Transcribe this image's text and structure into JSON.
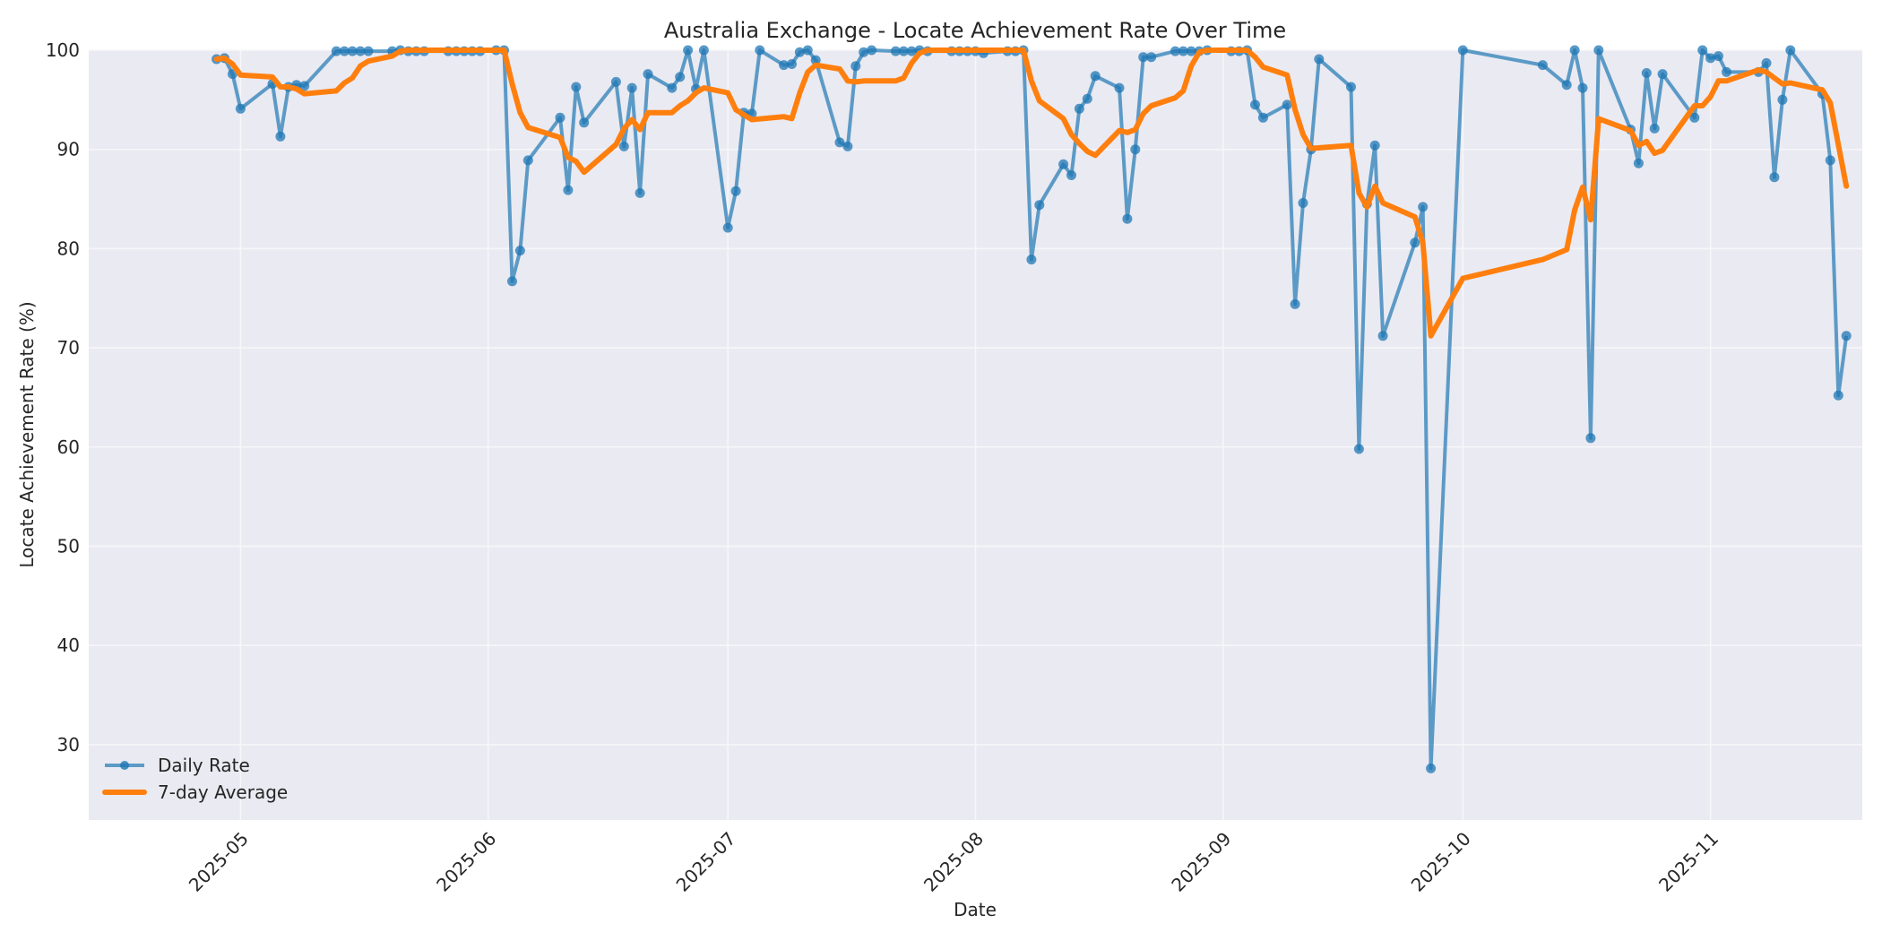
{
  "chart_data": {
    "type": "line",
    "title": "Australia Exchange - Locate Achievement Rate Over Time",
    "xlabel": "Date",
    "ylabel": "Locate Achievement Rate (%)",
    "ylim": [
      22.4,
      100
    ],
    "yticks": [
      30,
      40,
      50,
      60,
      70,
      80,
      90,
      100
    ],
    "xticks": [
      "2025-05",
      "2025-06",
      "2025-07",
      "2025-08",
      "2025-09",
      "2025-10",
      "2025-11"
    ],
    "xlim": [
      "2025-04-12",
      "2025-11-20"
    ],
    "grid": true,
    "legend_position": "lower left",
    "colors": {
      "daily": "#1f77b4",
      "average": "#ff7f0e",
      "plot_bg": "#eaeaf2",
      "grid": "#f5f5f8"
    },
    "series": [
      {
        "name": "Daily Rate",
        "style": "line-with-markers",
        "points": [
          [
            "2025-04-28",
            99.1
          ],
          [
            "2025-04-29",
            99.2
          ],
          [
            "2025-04-30",
            97.6
          ],
          [
            "2025-05-01",
            94.1
          ],
          [
            "2025-05-05",
            96.6
          ],
          [
            "2025-05-06",
            91.3
          ],
          [
            "2025-05-07",
            96.3
          ],
          [
            "2025-05-08",
            96.5
          ],
          [
            "2025-05-09",
            96.4
          ],
          [
            "2025-05-13",
            99.9
          ],
          [
            "2025-05-14",
            99.9
          ],
          [
            "2025-05-15",
            99.9
          ],
          [
            "2025-05-16",
            99.9
          ],
          [
            "2025-05-17",
            99.9
          ],
          [
            "2025-05-20",
            99.9
          ],
          [
            "2025-05-21",
            100
          ],
          [
            "2025-05-22",
            99.9
          ],
          [
            "2025-05-23",
            99.9
          ],
          [
            "2025-05-24",
            99.9
          ],
          [
            "2025-05-27",
            99.9
          ],
          [
            "2025-05-28",
            99.9
          ],
          [
            "2025-05-29",
            99.9
          ],
          [
            "2025-05-30",
            99.9
          ],
          [
            "2025-05-31",
            99.9
          ],
          [
            "2025-06-02",
            100
          ],
          [
            "2025-06-03",
            100
          ],
          [
            "2025-06-04",
            76.7
          ],
          [
            "2025-06-05",
            79.8
          ],
          [
            "2025-06-06",
            88.9
          ],
          [
            "2025-06-10",
            93.2
          ],
          [
            "2025-06-11",
            85.9
          ],
          [
            "2025-06-12",
            96.3
          ],
          [
            "2025-06-13",
            92.7
          ],
          [
            "2025-06-17",
            96.8
          ],
          [
            "2025-06-18",
            90.3
          ],
          [
            "2025-06-19",
            96.2
          ],
          [
            "2025-06-20",
            85.6
          ],
          [
            "2025-06-21",
            97.6
          ],
          [
            "2025-06-24",
            96.2
          ],
          [
            "2025-06-25",
            97.3
          ],
          [
            "2025-06-26",
            100
          ],
          [
            "2025-06-27",
            96.1
          ],
          [
            "2025-06-28",
            100
          ],
          [
            "2025-07-01",
            82.1
          ],
          [
            "2025-07-02",
            85.8
          ],
          [
            "2025-07-03",
            93.7
          ],
          [
            "2025-07-04",
            93.6
          ],
          [
            "2025-07-05",
            100
          ],
          [
            "2025-07-08",
            98.5
          ],
          [
            "2025-07-09",
            98.6
          ],
          [
            "2025-07-10",
            99.8
          ],
          [
            "2025-07-11",
            100
          ],
          [
            "2025-07-12",
            99.0
          ],
          [
            "2025-07-15",
            90.7
          ],
          [
            "2025-07-16",
            90.3
          ],
          [
            "2025-07-17",
            98.4
          ],
          [
            "2025-07-18",
            99.8
          ],
          [
            "2025-07-19",
            100
          ],
          [
            "2025-07-22",
            99.9
          ],
          [
            "2025-07-23",
            99.9
          ],
          [
            "2025-07-24",
            99.9
          ],
          [
            "2025-07-25",
            100
          ],
          [
            "2025-07-26",
            99.9
          ],
          [
            "2025-07-29",
            99.9
          ],
          [
            "2025-07-30",
            99.9
          ],
          [
            "2025-07-31",
            99.9
          ],
          [
            "2025-08-01",
            99.9
          ],
          [
            "2025-08-02",
            99.7
          ],
          [
            "2025-08-05",
            99.9
          ],
          [
            "2025-08-06",
            99.9
          ],
          [
            "2025-08-07",
            100
          ],
          [
            "2025-08-08",
            78.9
          ],
          [
            "2025-08-09",
            84.4
          ],
          [
            "2025-08-12",
            88.5
          ],
          [
            "2025-08-13",
            87.4
          ],
          [
            "2025-08-14",
            94.1
          ],
          [
            "2025-08-15",
            95.1
          ],
          [
            "2025-08-16",
            97.4
          ],
          [
            "2025-08-19",
            96.2
          ],
          [
            "2025-08-20",
            83.0
          ],
          [
            "2025-08-21",
            90.0
          ],
          [
            "2025-08-22",
            99.3
          ],
          [
            "2025-08-23",
            99.3
          ],
          [
            "2025-08-26",
            99.9
          ],
          [
            "2025-08-27",
            99.9
          ],
          [
            "2025-08-28",
            99.9
          ],
          [
            "2025-08-29",
            99.9
          ],
          [
            "2025-08-30",
            100
          ],
          [
            "2025-09-02",
            99.9
          ],
          [
            "2025-09-03",
            99.9
          ],
          [
            "2025-09-04",
            100
          ],
          [
            "2025-09-05",
            94.5
          ],
          [
            "2025-09-06",
            93.2
          ],
          [
            "2025-09-09",
            94.5
          ],
          [
            "2025-09-10",
            74.4
          ],
          [
            "2025-09-11",
            84.6
          ],
          [
            "2025-09-12",
            90.0
          ],
          [
            "2025-09-13",
            99.1
          ],
          [
            "2025-09-17",
            96.3
          ],
          [
            "2025-09-18",
            59.8
          ],
          [
            "2025-09-19",
            84.5
          ],
          [
            "2025-09-20",
            90.4
          ],
          [
            "2025-09-21",
            71.2
          ],
          [
            "2025-09-25",
            80.6
          ],
          [
            "2025-09-26",
            84.2
          ],
          [
            "2025-09-27",
            27.6
          ],
          [
            "2025-10-01",
            100
          ],
          [
            "2025-10-11",
            98.5
          ],
          [
            "2025-10-14",
            96.5
          ],
          [
            "2025-10-15",
            100
          ],
          [
            "2025-10-16",
            96.2
          ],
          [
            "2025-10-17",
            60.9
          ],
          [
            "2025-10-18",
            100
          ],
          [
            "2025-10-22",
            92.0
          ],
          [
            "2025-10-23",
            88.6
          ],
          [
            "2025-10-24",
            97.7
          ],
          [
            "2025-10-25",
            92.1
          ],
          [
            "2025-10-26",
            97.6
          ],
          [
            "2025-10-30",
            93.2
          ],
          [
            "2025-10-31",
            100
          ],
          [
            "2025-11-01",
            99.2
          ],
          [
            "2025-11-02",
            99.4
          ],
          [
            "2025-11-03",
            97.8
          ],
          [
            "2025-11-07",
            97.8
          ],
          [
            "2025-11-08",
            98.7
          ],
          [
            "2025-11-09",
            87.2
          ],
          [
            "2025-11-10",
            95.0
          ],
          [
            "2025-11-11",
            100
          ],
          [
            "2025-11-15",
            95.6
          ],
          [
            "2025-11-16",
            88.9
          ],
          [
            "2025-11-17",
            65.2
          ],
          [
            "2025-11-18",
            71.2
          ]
        ]
      },
      {
        "name": "7-day Average",
        "style": "thick-line",
        "points": [
          [
            "2025-04-28",
            99.1
          ],
          [
            "2025-04-29",
            99.2
          ],
          [
            "2025-04-30",
            98.6
          ],
          [
            "2025-05-01",
            97.5
          ],
          [
            "2025-05-05",
            97.3
          ],
          [
            "2025-05-06",
            96.3
          ],
          [
            "2025-05-07",
            96.3
          ],
          [
            "2025-05-08",
            96.1
          ],
          [
            "2025-05-09",
            95.6
          ],
          [
            "2025-05-13",
            95.9
          ],
          [
            "2025-05-14",
            96.7
          ],
          [
            "2025-05-15",
            97.2
          ],
          [
            "2025-05-16",
            98.4
          ],
          [
            "2025-05-17",
            98.9
          ],
          [
            "2025-05-20",
            99.4
          ],
          [
            "2025-05-21",
            99.9
          ],
          [
            "2025-05-22",
            100
          ],
          [
            "2025-06-03",
            100
          ],
          [
            "2025-06-04",
            96.6
          ],
          [
            "2025-06-05",
            93.7
          ],
          [
            "2025-06-06",
            92.2
          ],
          [
            "2025-06-10",
            91.2
          ],
          [
            "2025-06-11",
            89.2
          ],
          [
            "2025-06-12",
            88.8
          ],
          [
            "2025-06-13",
            87.7
          ],
          [
            "2025-06-17",
            90.5
          ],
          [
            "2025-06-18",
            92.1
          ],
          [
            "2025-06-19",
            93.0
          ],
          [
            "2025-06-20",
            92.0
          ],
          [
            "2025-06-21",
            93.7
          ],
          [
            "2025-06-24",
            93.7
          ],
          [
            "2025-06-25",
            94.4
          ],
          [
            "2025-06-26",
            94.9
          ],
          [
            "2025-06-27",
            95.7
          ],
          [
            "2025-06-28",
            96.2
          ],
          [
            "2025-07-01",
            95.7
          ],
          [
            "2025-07-02",
            94.0
          ],
          [
            "2025-07-03",
            93.5
          ],
          [
            "2025-07-04",
            93.0
          ],
          [
            "2025-07-08",
            93.3
          ],
          [
            "2025-07-09",
            93.1
          ],
          [
            "2025-07-10",
            95.7
          ],
          [
            "2025-07-11",
            97.8
          ],
          [
            "2025-07-12",
            98.5
          ],
          [
            "2025-07-15",
            98.1
          ],
          [
            "2025-07-16",
            96.9
          ],
          [
            "2025-07-17",
            96.8
          ],
          [
            "2025-07-18",
            96.9
          ],
          [
            "2025-07-22",
            96.9
          ],
          [
            "2025-07-23",
            97.2
          ],
          [
            "2025-07-24",
            98.7
          ],
          [
            "2025-07-25",
            99.7
          ],
          [
            "2025-07-26",
            100
          ],
          [
            "2025-08-07",
            100
          ],
          [
            "2025-08-08",
            96.9
          ],
          [
            "2025-08-09",
            94.9
          ],
          [
            "2025-08-12",
            93.1
          ],
          [
            "2025-08-13",
            91.5
          ],
          [
            "2025-08-14",
            90.6
          ],
          [
            "2025-08-15",
            89.8
          ],
          [
            "2025-08-16",
            89.4
          ],
          [
            "2025-08-19",
            91.9
          ],
          [
            "2025-08-20",
            91.7
          ],
          [
            "2025-08-21",
            92.0
          ],
          [
            "2025-08-22",
            93.6
          ],
          [
            "2025-08-23",
            94.4
          ],
          [
            "2025-08-26",
            95.2
          ],
          [
            "2025-08-27",
            95.9
          ],
          [
            "2025-08-28",
            98.4
          ],
          [
            "2025-08-29",
            99.8
          ],
          [
            "2025-08-30",
            100
          ],
          [
            "2025-09-04",
            100
          ],
          [
            "2025-09-05",
            99.3
          ],
          [
            "2025-09-06",
            98.3
          ],
          [
            "2025-09-09",
            97.5
          ],
          [
            "2025-09-10",
            94.0
          ],
          [
            "2025-09-11",
            91.5
          ],
          [
            "2025-09-12",
            90.1
          ],
          [
            "2025-09-17",
            90.4
          ],
          [
            "2025-09-18",
            85.6
          ],
          [
            "2025-09-19",
            84.2
          ],
          [
            "2025-09-20",
            86.3
          ],
          [
            "2025-09-21",
            84.6
          ],
          [
            "2025-09-25",
            83.2
          ],
          [
            "2025-09-26",
            80.6
          ],
          [
            "2025-09-27",
            71.2
          ],
          [
            "2025-10-01",
            77.0
          ],
          [
            "2025-10-11",
            78.9
          ],
          [
            "2025-10-14",
            79.9
          ],
          [
            "2025-10-15",
            83.9
          ],
          [
            "2025-10-16",
            86.2
          ],
          [
            "2025-10-17",
            82.9
          ],
          [
            "2025-10-18",
            93.1
          ],
          [
            "2025-10-22",
            91.9
          ],
          [
            "2025-10-23",
            90.4
          ],
          [
            "2025-10-24",
            90.8
          ],
          [
            "2025-10-25",
            89.6
          ],
          [
            "2025-10-26",
            89.9
          ],
          [
            "2025-10-30",
            94.4
          ],
          [
            "2025-10-31",
            94.4
          ],
          [
            "2025-11-01",
            95.3
          ],
          [
            "2025-11-02",
            96.9
          ],
          [
            "2025-11-03",
            96.9
          ],
          [
            "2025-11-07",
            98.0
          ],
          [
            "2025-11-08",
            97.8
          ],
          [
            "2025-11-09",
            97.2
          ],
          [
            "2025-11-10",
            96.6
          ],
          [
            "2025-11-11",
            96.7
          ],
          [
            "2025-11-15",
            96.0
          ],
          [
            "2025-11-16",
            94.7
          ],
          [
            "2025-11-18",
            86.3
          ]
        ]
      }
    ]
  },
  "legend": {
    "daily_label": "Daily Rate",
    "average_label": "7-day Average"
  }
}
